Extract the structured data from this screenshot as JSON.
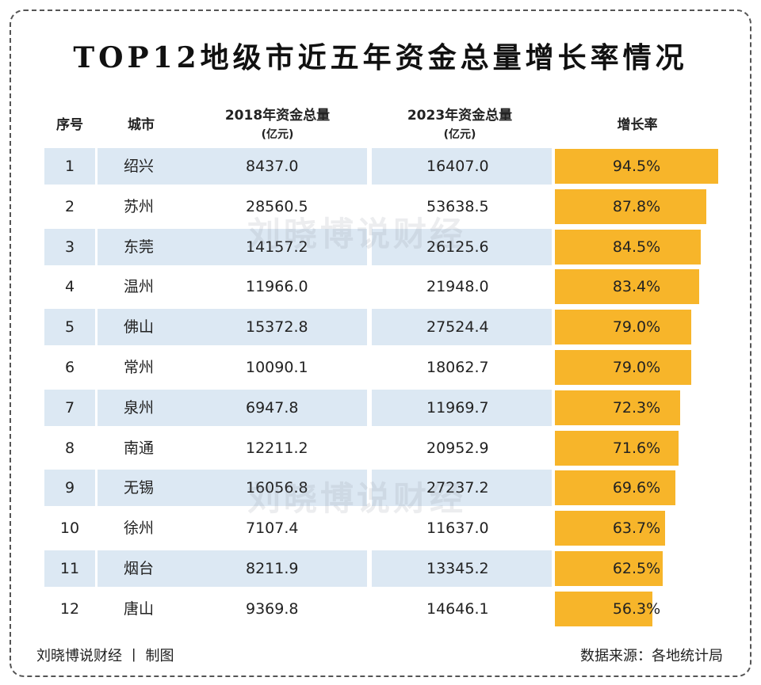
{
  "title": "TOP12地级市近五年资金总量增长率情况",
  "headers": {
    "index": "序号",
    "city": "城市",
    "y2018": "2018年资金总量",
    "y2018_unit": "(亿元)",
    "y2023": "2023年资金总量",
    "y2023_unit": "(亿元)",
    "rate": "增长率"
  },
  "watermark": "刘晓博说财经",
  "footer": {
    "left": "刘晓博说财经 丨 制图",
    "right": "数据来源：各地统计局"
  },
  "colors": {
    "bar": "#f7b52a",
    "row_band": "#dce8f3"
  },
  "chart_data": {
    "type": "table",
    "title": "TOP12地级市近五年资金总量增长率情况",
    "columns": [
      "序号",
      "城市",
      "2018年资金总量(亿元)",
      "2023年资金总量(亿元)",
      "增长率"
    ],
    "rows": [
      {
        "index": "1",
        "city": "绍兴",
        "y2018": "8437.0",
        "y2023": "16407.0",
        "rate_label": "94.5%",
        "rate": 94.5
      },
      {
        "index": "2",
        "city": "苏州",
        "y2018": "28560.5",
        "y2023": "53638.5",
        "rate_label": "87.8%",
        "rate": 87.8
      },
      {
        "index": "3",
        "city": "东莞",
        "y2018": "14157.2",
        "y2023": "26125.6",
        "rate_label": "84.5%",
        "rate": 84.5
      },
      {
        "index": "4",
        "city": "温州",
        "y2018": "11966.0",
        "y2023": "21948.0",
        "rate_label": "83.4%",
        "rate": 83.4
      },
      {
        "index": "5",
        "city": "佛山",
        "y2018": "15372.8",
        "y2023": "27524.4",
        "rate_label": "79.0%",
        "rate": 79.0
      },
      {
        "index": "6",
        "city": "常州",
        "y2018": "10090.1",
        "y2023": "18062.7",
        "rate_label": "79.0%",
        "rate": 79.0
      },
      {
        "index": "7",
        "city": "泉州",
        "y2018": "6947.8",
        "y2023": "11969.7",
        "rate_label": "72.3%",
        "rate": 72.3
      },
      {
        "index": "8",
        "city": "南通",
        "y2018": "12211.2",
        "y2023": "20952.9",
        "rate_label": "71.6%",
        "rate": 71.6
      },
      {
        "index": "9",
        "city": "无锡",
        "y2018": "16056.8",
        "y2023": "27237.2",
        "rate_label": "69.6%",
        "rate": 69.6
      },
      {
        "index": "10",
        "city": "徐州",
        "y2018": "7107.4",
        "y2023": "11637.0",
        "rate_label": "63.7%",
        "rate": 63.7
      },
      {
        "index": "11",
        "city": "烟台",
        "y2018": "8211.9",
        "y2023": "13345.2",
        "rate_label": "62.5%",
        "rate": 62.5
      },
      {
        "index": "12",
        "city": "唐山",
        "y2018": "9369.8",
        "y2023": "14646.1",
        "rate_label": "56.3%",
        "rate": 56.3
      }
    ]
  }
}
